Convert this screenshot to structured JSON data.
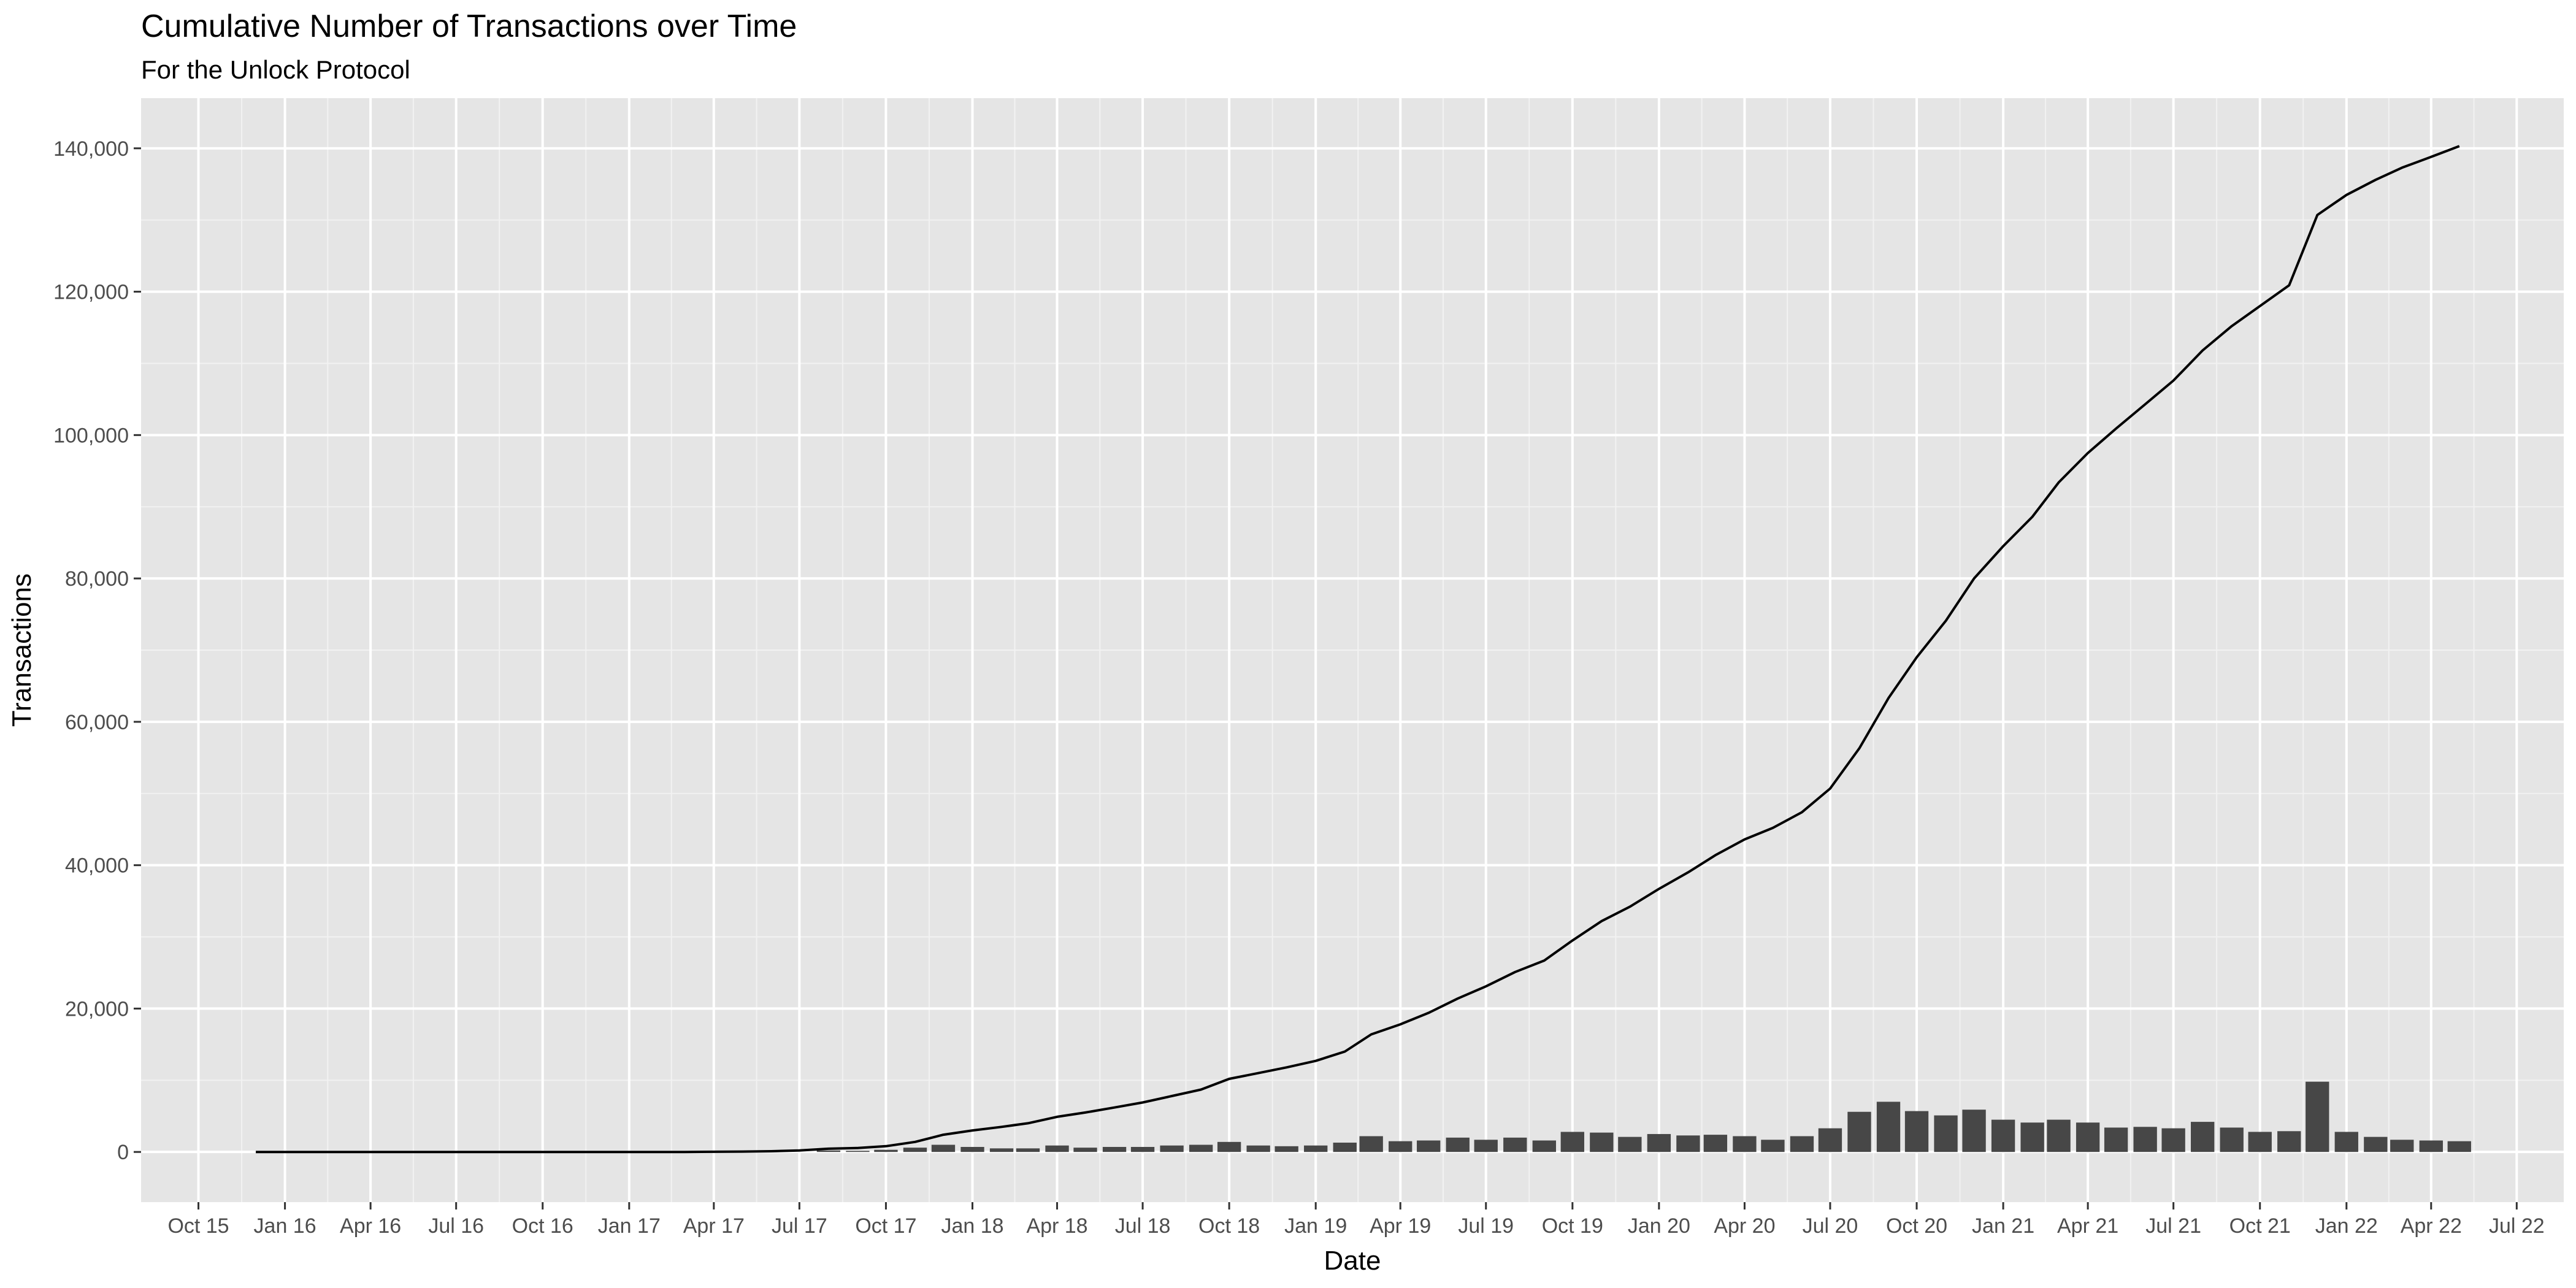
{
  "chart_data": {
    "type": "bar",
    "title": "Cumulative Number of Transactions over Time",
    "subtitle": "For the Unlock Protocol",
    "xlabel": "Date",
    "ylabel": "Transactions",
    "x_axis": {
      "type": "date",
      "range": [
        "2015-08-01",
        "2022-08-20"
      ],
      "tick_labels": [
        "Oct 15",
        "Jan 16",
        "Apr 16",
        "Jul 16",
        "Oct 16",
        "Jan 17",
        "Apr 17",
        "Jul 17",
        "Oct 17",
        "Jan 18",
        "Apr 18",
        "Jul 18",
        "Oct 18",
        "Jan 19",
        "Apr 19",
        "Jul 19",
        "Oct 19",
        "Jan 20",
        "Apr 20",
        "Jul 20",
        "Oct 20",
        "Jan 21",
        "Apr 21",
        "Jul 21",
        "Oct 21",
        "Jan 22",
        "Apr 22",
        "Jul 22"
      ],
      "tick_dates": [
        "2015-10-01",
        "2016-01-01",
        "2016-04-01",
        "2016-07-01",
        "2016-10-01",
        "2017-01-01",
        "2017-04-01",
        "2017-07-01",
        "2017-10-01",
        "2018-01-01",
        "2018-04-01",
        "2018-07-01",
        "2018-10-01",
        "2019-01-01",
        "2019-04-01",
        "2019-07-01",
        "2019-10-01",
        "2020-01-01",
        "2020-04-01",
        "2020-07-01",
        "2020-10-01",
        "2021-01-01",
        "2021-04-01",
        "2021-07-01",
        "2021-10-01",
        "2022-01-01",
        "2022-04-01",
        "2022-07-01"
      ]
    },
    "y_axis": {
      "range": [
        -7000,
        147000
      ],
      "ticks": [
        0,
        20000,
        40000,
        60000,
        80000,
        100000,
        120000,
        140000
      ],
      "tick_labels": [
        "0",
        "20,000",
        "40,000",
        "60,000",
        "80,000",
        "100,000",
        "120,000",
        "140,000"
      ]
    },
    "grid": true,
    "series": [
      {
        "type": "bar",
        "points": [
          [
            "2017-08-01",
            200
          ],
          [
            "2017-09-01",
            150
          ],
          [
            "2017-10-01",
            300
          ],
          [
            "2017-11-01",
            600
          ],
          [
            "2017-12-01",
            1000
          ],
          [
            "2018-01-01",
            700
          ],
          [
            "2018-02-01",
            500
          ],
          [
            "2018-03-01",
            500
          ],
          [
            "2018-04-01",
            900
          ],
          [
            "2018-05-01",
            600
          ],
          [
            "2018-06-01",
            700
          ],
          [
            "2018-07-01",
            700
          ],
          [
            "2018-08-01",
            900
          ],
          [
            "2018-09-01",
            1000
          ],
          [
            "2018-10-01",
            1400
          ],
          [
            "2018-11-01",
            900
          ],
          [
            "2018-12-01",
            800
          ],
          [
            "2019-01-01",
            900
          ],
          [
            "2019-02-01",
            1300
          ],
          [
            "2019-03-01",
            2200
          ],
          [
            "2019-04-01",
            1500
          ],
          [
            "2019-05-01",
            1600
          ],
          [
            "2019-06-01",
            2000
          ],
          [
            "2019-07-01",
            1700
          ],
          [
            "2019-08-01",
            2000
          ],
          [
            "2019-09-01",
            1600
          ],
          [
            "2019-10-01",
            2800
          ],
          [
            "2019-11-01",
            2700
          ],
          [
            "2019-12-01",
            2100
          ],
          [
            "2020-01-01",
            2500
          ],
          [
            "2020-02-01",
            2300
          ],
          [
            "2020-03-01",
            2400
          ],
          [
            "2020-04-01",
            2200
          ],
          [
            "2020-05-01",
            1700
          ],
          [
            "2020-06-01",
            2200
          ],
          [
            "2020-07-01",
            3300
          ],
          [
            "2020-08-01",
            5600
          ],
          [
            "2020-09-01",
            7000
          ],
          [
            "2020-10-01",
            5700
          ],
          [
            "2020-11-01",
            5100
          ],
          [
            "2020-12-01",
            5900
          ],
          [
            "2021-01-01",
            4500
          ],
          [
            "2021-02-01",
            4100
          ],
          [
            "2021-03-01",
            4500
          ],
          [
            "2021-04-01",
            4100
          ],
          [
            "2021-05-01",
            3400
          ],
          [
            "2021-06-01",
            3500
          ],
          [
            "2021-07-01",
            3300
          ],
          [
            "2021-08-01",
            4200
          ],
          [
            "2021-09-01",
            3400
          ],
          [
            "2021-10-01",
            2800
          ],
          [
            "2021-11-01",
            2900
          ],
          [
            "2021-12-01",
            9800
          ],
          [
            "2022-01-01",
            2800
          ],
          [
            "2022-02-01",
            2100
          ],
          [
            "2022-03-01",
            1700
          ],
          [
            "2022-04-01",
            1600
          ],
          [
            "2022-05-01",
            1500
          ]
        ]
      },
      {
        "type": "line",
        "points": [
          [
            "2015-12-01",
            0
          ],
          [
            "2016-06-01",
            0
          ],
          [
            "2016-12-01",
            0
          ],
          [
            "2017-03-01",
            0
          ],
          [
            "2017-05-01",
            50
          ],
          [
            "2017-06-01",
            100
          ],
          [
            "2017-07-01",
            200
          ],
          [
            "2017-08-01",
            450
          ],
          [
            "2017-09-01",
            550
          ],
          [
            "2017-10-01",
            800
          ],
          [
            "2017-11-01",
            1400
          ],
          [
            "2017-12-01",
            2400
          ],
          [
            "2018-01-01",
            3000
          ],
          [
            "2018-02-01",
            3500
          ],
          [
            "2018-03-01",
            4000
          ],
          [
            "2018-04-01",
            4900
          ],
          [
            "2018-05-01",
            5500
          ],
          [
            "2018-06-01",
            6200
          ],
          [
            "2018-07-01",
            6900
          ],
          [
            "2018-08-01",
            7800
          ],
          [
            "2018-09-01",
            8700
          ],
          [
            "2018-10-01",
            10200
          ],
          [
            "2018-11-01",
            11000
          ],
          [
            "2018-12-01",
            11800
          ],
          [
            "2019-01-01",
            12700
          ],
          [
            "2019-02-01",
            14000
          ],
          [
            "2019-03-01",
            16400
          ],
          [
            "2019-04-01",
            17800
          ],
          [
            "2019-05-01",
            19400
          ],
          [
            "2019-06-01",
            21400
          ],
          [
            "2019-07-01",
            23100
          ],
          [
            "2019-08-01",
            25100
          ],
          [
            "2019-09-01",
            26700
          ],
          [
            "2019-10-01",
            29500
          ],
          [
            "2019-11-01",
            32200
          ],
          [
            "2019-12-01",
            34200
          ],
          [
            "2020-01-01",
            36700
          ],
          [
            "2020-02-01",
            39000
          ],
          [
            "2020-03-01",
            41400
          ],
          [
            "2020-04-01",
            43600
          ],
          [
            "2020-05-01",
            45200
          ],
          [
            "2020-06-01",
            47400
          ],
          [
            "2020-07-01",
            50700
          ],
          [
            "2020-08-01",
            56300
          ],
          [
            "2020-09-01",
            63300
          ],
          [
            "2020-10-01",
            69000
          ],
          [
            "2020-11-01",
            74100
          ],
          [
            "2020-12-01",
            80000
          ],
          [
            "2021-01-01",
            84500
          ],
          [
            "2021-02-01",
            88600
          ],
          [
            "2021-03-01",
            93400
          ],
          [
            "2021-04-01",
            97500
          ],
          [
            "2021-05-01",
            100900
          ],
          [
            "2021-06-01",
            104300
          ],
          [
            "2021-07-01",
            107600
          ],
          [
            "2021-08-01",
            111800
          ],
          [
            "2021-09-01",
            115200
          ],
          [
            "2021-10-01",
            118000
          ],
          [
            "2021-11-01",
            120900
          ],
          [
            "2021-12-01",
            130700
          ],
          [
            "2022-01-01",
            133500
          ],
          [
            "2022-02-01",
            135600
          ],
          [
            "2022-03-01",
            137300
          ],
          [
            "2022-04-01",
            138800
          ],
          [
            "2022-05-01",
            140300
          ]
        ]
      }
    ],
    "colors": {
      "panel_background": "#e5e5e5",
      "grid_major": "#ffffff",
      "grid_minor": "#f2f2f2",
      "bar_fill": "#474747",
      "line": "#000000",
      "tick_text": "#4d4d4d"
    }
  }
}
